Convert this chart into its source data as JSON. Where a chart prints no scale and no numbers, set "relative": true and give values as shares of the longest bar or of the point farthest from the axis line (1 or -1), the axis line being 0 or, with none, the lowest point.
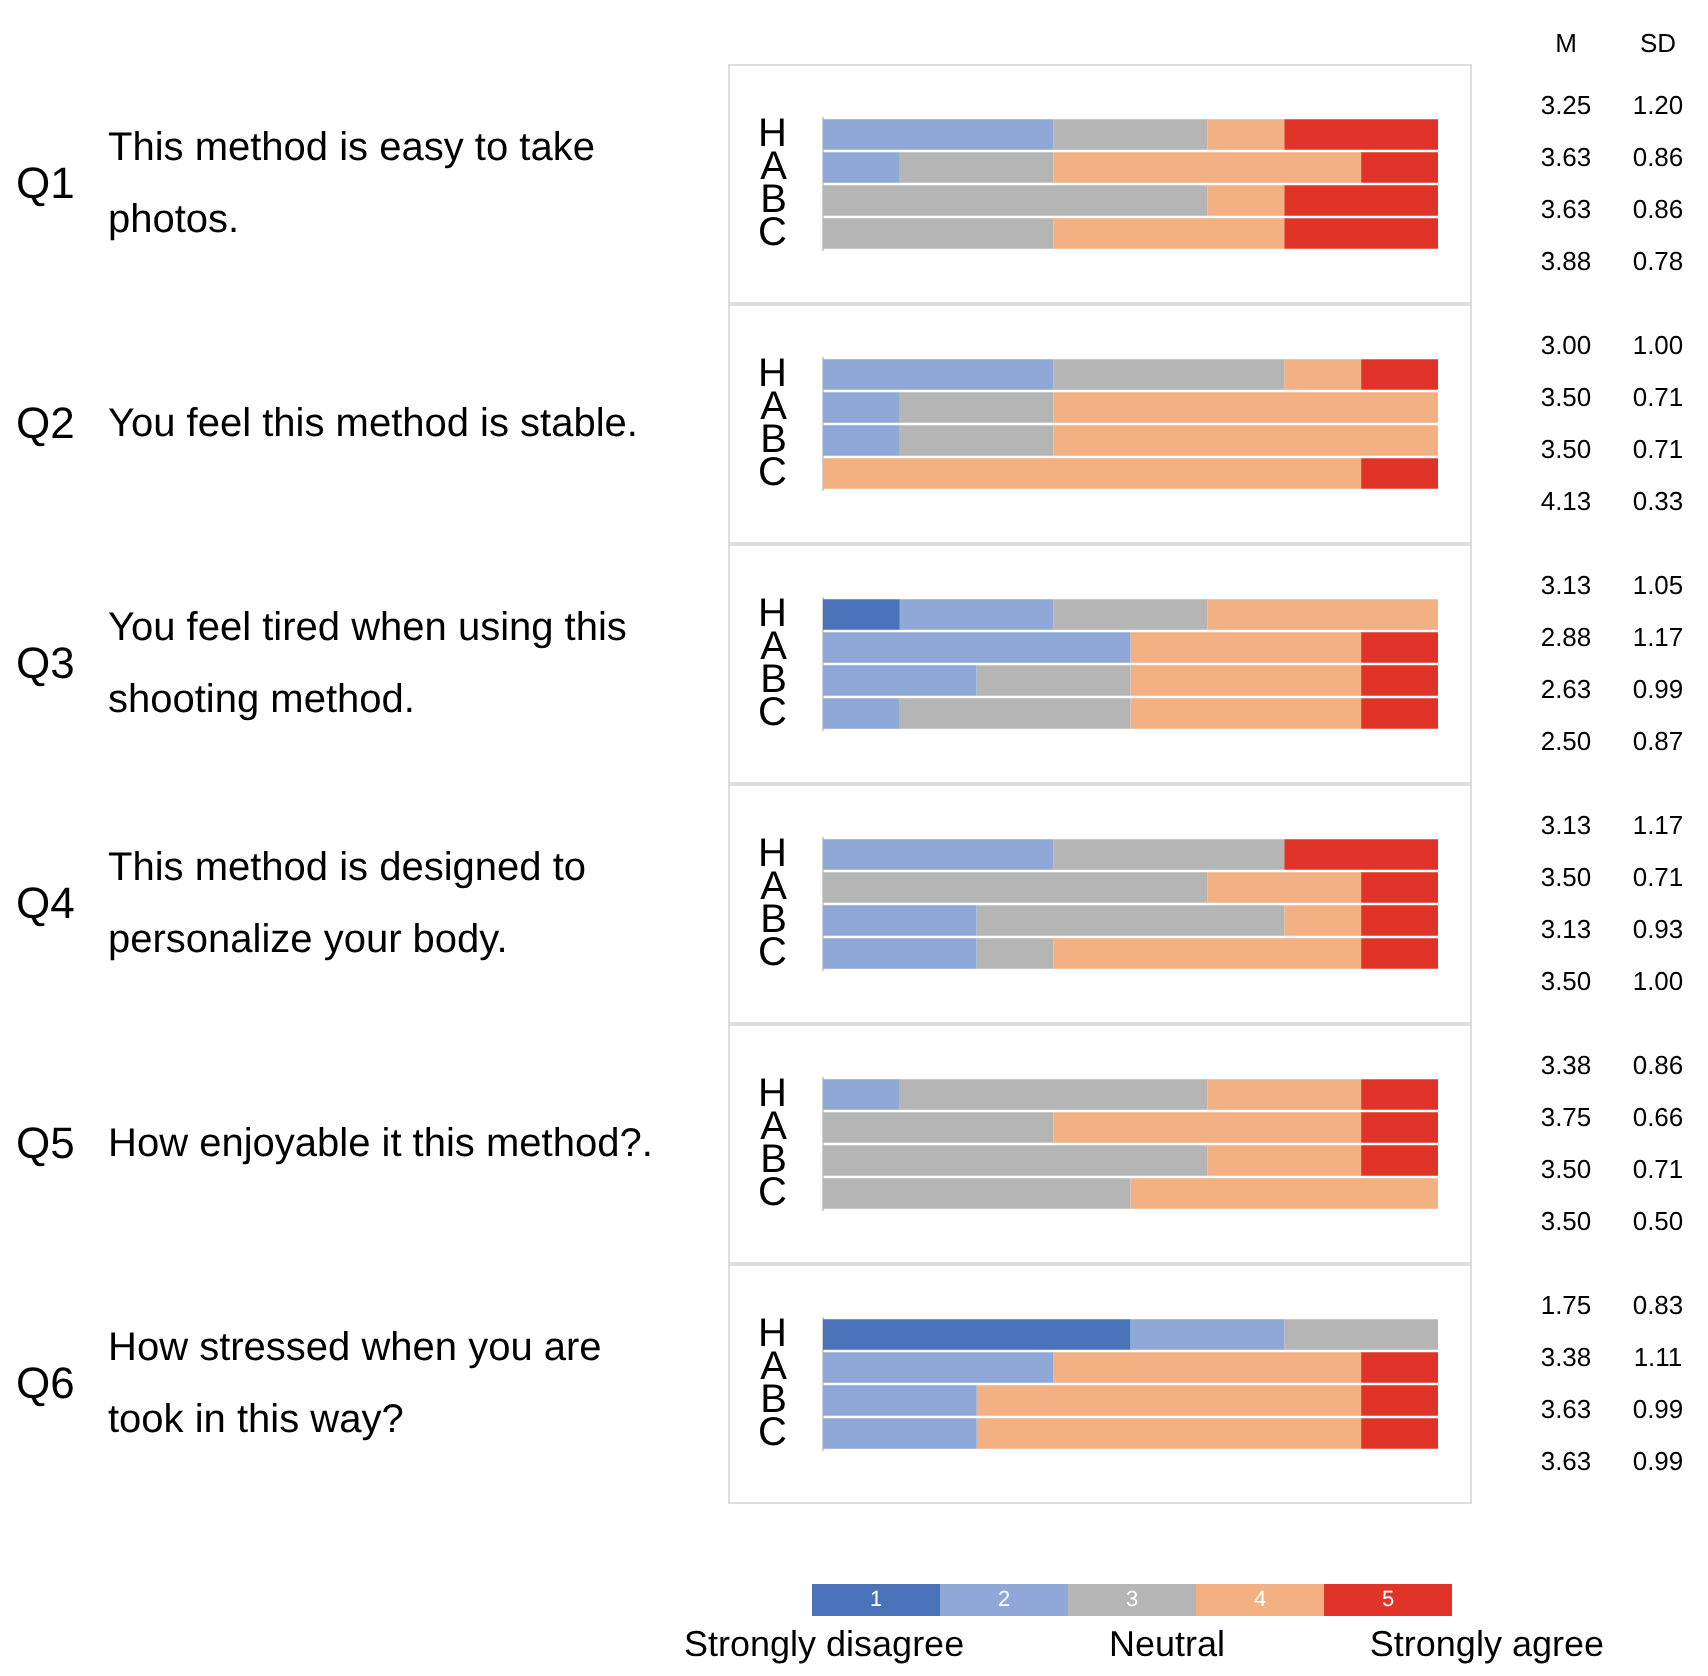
{
  "chart_data": [
    {
      "type": "bar",
      "orientation": "horizontal",
      "stacked": true,
      "relative": true,
      "ylabel": "Q1",
      "annotations": [
        "This method is easy to take photos."
      ],
      "categories": [
        "H",
        "A",
        "B",
        "C"
      ],
      "series": [
        {
          "color": "#8fa8d8",
          "values": [
            0.375,
            0.125,
            null,
            null
          ]
        },
        {
          "color": "#b5b5b5",
          "values": [
            0.25,
            0.25,
            0.625,
            0.375
          ]
        },
        {
          "color": "#f3b183",
          "values": [
            0.125,
            0.5,
            0.125,
            0.375
          ]
        },
        {
          "color": "#df3427",
          "values": [
            0.25,
            0.125,
            0.25,
            0.25
          ]
        }
      ]
    },
    {
      "type": "bar",
      "orientation": "horizontal",
      "stacked": true,
      "relative": true,
      "ylabel": "Q2",
      "annotations": [
        "You feel this method is stable."
      ],
      "categories": [
        "H",
        "A",
        "B",
        "C"
      ],
      "series": [
        {
          "color": "#8fa8d8",
          "values": [
            0.375,
            0.125,
            0.125,
            null
          ]
        },
        {
          "color": "#b5b5b5",
          "values": [
            0.375,
            0.25,
            0.25,
            null
          ]
        },
        {
          "color": "#f3b183",
          "values": [
            0.125,
            0.625,
            0.625,
            0.875
          ]
        },
        {
          "color": "#df3427",
          "values": [
            0.125,
            null,
            null,
            0.125
          ]
        }
      ]
    },
    {
      "type": "bar",
      "orientation": "horizontal",
      "stacked": true,
      "relative": true,
      "ylabel": "Q3",
      "annotations": [
        "You feel tired when using this shooting method."
      ],
      "categories": [
        "H",
        "A",
        "B",
        "C"
      ],
      "series": [
        {
          "color": "#4a72b8",
          "values": [
            0.125,
            null,
            null,
            null
          ]
        },
        {
          "color": "#8fa8d8",
          "values": [
            0.25,
            0.5,
            0.25,
            0.125
          ]
        },
        {
          "color": "#b5b5b5",
          "values": [
            0.25,
            null,
            0.25,
            0.375
          ]
        },
        {
          "color": "#f3b183",
          "values": [
            0.375,
            0.375,
            0.375,
            0.375
          ]
        },
        {
          "color": "#df3427",
          "values": [
            null,
            0.125,
            0.125,
            0.125
          ]
        }
      ]
    },
    {
      "type": "bar",
      "orientation": "horizontal",
      "stacked": true,
      "relative": true,
      "ylabel": "Q4",
      "annotations": [
        "This method is designed to personalize your body."
      ],
      "categories": [
        "H",
        "A",
        "B",
        "C"
      ],
      "series": [
        {
          "color": "#8fa8d8",
          "values": [
            0.375,
            null,
            0.25,
            0.25
          ]
        },
        {
          "color": "#b5b5b5",
          "values": [
            0.375,
            0.625,
            0.5,
            0.125
          ]
        },
        {
          "color": "#f3b183",
          "values": [
            null,
            0.25,
            0.125,
            0.5
          ]
        },
        {
          "color": "#df3427",
          "values": [
            0.25,
            0.125,
            0.125,
            0.125
          ]
        }
      ]
    },
    {
      "type": "bar",
      "orientation": "horizontal",
      "stacked": true,
      "relative": true,
      "ylabel": "Q5",
      "annotations": [
        "How enjoyable it this method?."
      ],
      "categories": [
        "H",
        "A",
        "B",
        "C"
      ],
      "series": [
        {
          "color": "#8fa8d8",
          "values": [
            0.125,
            null,
            null,
            null
          ]
        },
        {
          "color": "#b5b5b5",
          "values": [
            0.5,
            0.375,
            0.625,
            0.5
          ]
        },
        {
          "color": "#f3b183",
          "values": [
            0.25,
            0.5,
            0.25,
            0.5
          ]
        },
        {
          "color": "#df3427",
          "values": [
            0.125,
            0.125,
            0.125,
            null
          ]
        }
      ]
    },
    {
      "type": "bar",
      "orientation": "horizontal",
      "stacked": true,
      "relative": true,
      "ylabel": "Q6",
      "annotations": [
        "How stressed when you are took in this way?"
      ],
      "categories": [
        "H",
        "A",
        "B",
        "C"
      ],
      "legend": "bottom",
      "series": [
        {
          "name": "1",
          "color": "#4a72b8",
          "values": [
            0.5,
            null,
            null,
            null
          ]
        },
        {
          "name": "2",
          "color": "#8fa8d8",
          "values": [
            0.25,
            0.375,
            0.25,
            0.25
          ]
        },
        {
          "name": "3",
          "color": "#b5b5b5",
          "values": [
            0.25,
            null,
            null,
            null
          ]
        },
        {
          "name": "4",
          "color": "#f3b183",
          "values": [
            null,
            0.5,
            0.625,
            0.625
          ]
        },
        {
          "name": "5",
          "color": "#df3427",
          "values": [
            null,
            0.125,
            0.125,
            0.125
          ]
        }
      ]
    },
    {
      "type": "other",
      "annotations": [
        "M",
        "SD",
        "3.25",
        "1.20",
        "3.63",
        "0.86",
        "3.63",
        "0.86",
        "3.88",
        "0.78",
        "3.00",
        "1.00",
        "3.50",
        "0.71",
        "3.50",
        "0.71",
        "4.13",
        "0.33",
        "3.13",
        "1.05",
        "2.88",
        "1.17",
        "2.63",
        "0.99",
        "2.50",
        "0.87",
        "3.13",
        "1.17",
        "3.50",
        "0.71",
        "3.13",
        "0.93",
        "3.50",
        "1.00",
        "3.38",
        "0.86",
        "3.75",
        "0.66",
        "3.50",
        "0.71",
        "3.50",
        "0.50",
        "1.75",
        "0.83",
        "3.38",
        "1.11",
        "3.63",
        "0.99",
        "3.63",
        "0.99"
      ]
    },
    {
      "type": "other",
      "annotations": [
        "Strongly disagree",
        "Neutral",
        "Strongly agree"
      ]
    }
  ]
}
